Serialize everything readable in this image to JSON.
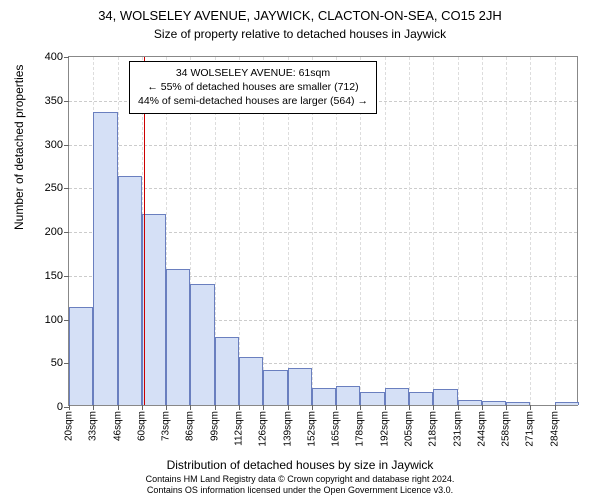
{
  "header": {
    "title": "34, WOLSELEY AVENUE, JAYWICK, CLACTON-ON-SEA, CO15 2JH",
    "subtitle": "Size of property relative to detached houses in Jaywick"
  },
  "chart": {
    "type": "histogram",
    "ylabel": "Number of detached properties",
    "xlabel": "Distribution of detached houses by size in Jaywick",
    "ylim": [
      0,
      400
    ],
    "ytick_step": 50,
    "yticks": [
      0,
      50,
      100,
      150,
      200,
      250,
      300,
      350,
      400
    ],
    "xtick_labels": [
      "20sqm",
      "33sqm",
      "46sqm",
      "60sqm",
      "73sqm",
      "86sqm",
      "99sqm",
      "112sqm",
      "126sqm",
      "139sqm",
      "152sqm",
      "165sqm",
      "178sqm",
      "192sqm",
      "205sqm",
      "218sqm",
      "231sqm",
      "244sqm",
      "258sqm",
      "271sqm",
      "284sqm"
    ],
    "values": [
      112,
      335,
      262,
      218,
      155,
      138,
      78,
      55,
      40,
      42,
      20,
      22,
      15,
      20,
      15,
      18,
      6,
      5,
      4,
      0,
      3
    ],
    "bar_fill": "#d5e0f6",
    "bar_stroke": "#6a7fbf",
    "bar_width_ratio": 1.0,
    "background_color": "#ffffff",
    "grid_color": "#cccccc",
    "axis_color": "#888888",
    "title_fontsize": 13,
    "subtitle_fontsize": 12,
    "label_fontsize": 12,
    "tick_fontsize": 11,
    "xtick_fontsize": 10,
    "xtick_rotation": -90
  },
  "marker": {
    "value_sqm": 61,
    "line_color": "#cc0000",
    "box": {
      "line1": "34 WOLSELEY AVENUE: 61sqm",
      "line2": "← 55% of detached houses are smaller (712)",
      "line3": "44% of semi-detached houses are larger (564) →"
    },
    "box_border": "#000000",
    "box_bg": "#ffffff",
    "box_fontsize": 10.5
  },
  "footer": {
    "line1": "Contains HM Land Registry data © Crown copyright and database right 2024.",
    "line2": "Contains OS information licensed under the Open Government Licence v3.0."
  }
}
